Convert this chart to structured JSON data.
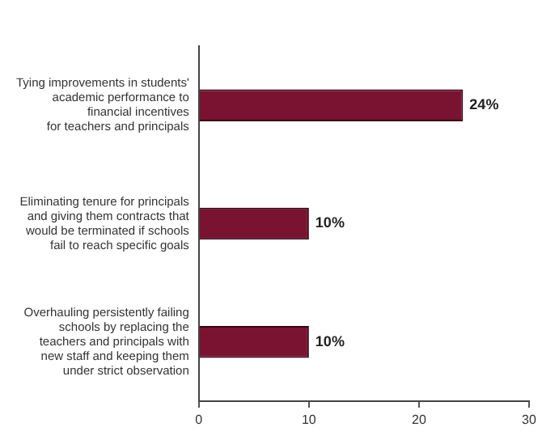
{
  "chart_data": {
    "type": "bar",
    "orientation": "horizontal",
    "categories": [
      "Tying improvements in students'\nacademic performance to\nfinancial incentives\nfor teachers and principals",
      "Eliminating tenure for principals\nand giving them contracts that\nwould be terminated if schools\nfail to reach specific goals",
      "Overhauling persistently failing\nschools by replacing the\nteachers and principals with\nnew staff and keeping them\nunder strict observation"
    ],
    "values": [
      24,
      10,
      10
    ],
    "value_labels": [
      "24%",
      "10%",
      "10%"
    ],
    "color": "#7a1231",
    "xlim": [
      0,
      30
    ],
    "xticks": [
      0,
      10,
      20,
      30
    ],
    "grid": false,
    "legend": false
  }
}
